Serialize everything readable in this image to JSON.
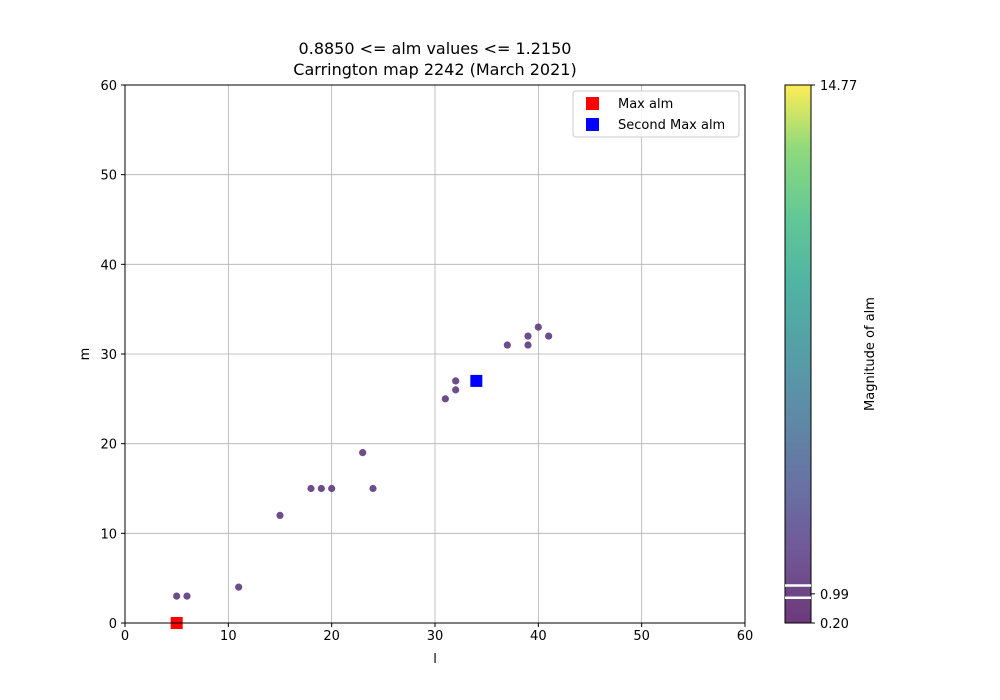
{
  "chart_data": {
    "type": "scatter",
    "title": "0.8850 <= alm values <= 1.2150",
    "subtitle": "Carrington map 2242 (March 2021)",
    "xlabel": "l",
    "ylabel": "m",
    "xlim": [
      0,
      60
    ],
    "ylim": [
      0,
      60
    ],
    "x_ticks": [
      "0",
      "10",
      "20",
      "30",
      "40",
      "50",
      "60"
    ],
    "y_ticks": [
      "0",
      "10",
      "20",
      "30",
      "40",
      "50",
      "60"
    ],
    "grid": true,
    "legend_position": "top-right",
    "points": [
      {
        "l": 5,
        "m": 3
      },
      {
        "l": 6,
        "m": 3
      },
      {
        "l": 11,
        "m": 4
      },
      {
        "l": 15,
        "m": 12
      },
      {
        "l": 18,
        "m": 15
      },
      {
        "l": 19,
        "m": 15
      },
      {
        "l": 20,
        "m": 15
      },
      {
        "l": 23,
        "m": 19
      },
      {
        "l": 24,
        "m": 15
      },
      {
        "l": 31,
        "m": 25
      },
      {
        "l": 32,
        "m": 26
      },
      {
        "l": 32,
        "m": 27
      },
      {
        "l": 37,
        "m": 31
      },
      {
        "l": 39,
        "m": 31
      },
      {
        "l": 39,
        "m": 32
      },
      {
        "l": 40,
        "m": 33
      },
      {
        "l": 41,
        "m": 32
      }
    ],
    "point_color": "#5e3a7e",
    "max_alm": {
      "label": "Max alm",
      "l": 5,
      "m": 0,
      "color": "#ff0000"
    },
    "second_max_alm": {
      "label": "Second Max alm",
      "l": 34,
      "m": 27,
      "color": "#0000ff"
    },
    "colorbar": {
      "label": "Magnitude of alm",
      "min": 0.2,
      "max": 14.77,
      "ticks": [
        "14.77",
        "0.99",
        "0.20"
      ],
      "tick_values": [
        14.77,
        0.99,
        0.2
      ],
      "colormap": "viridis",
      "marker_values": [
        0.885,
        1.215
      ]
    }
  }
}
